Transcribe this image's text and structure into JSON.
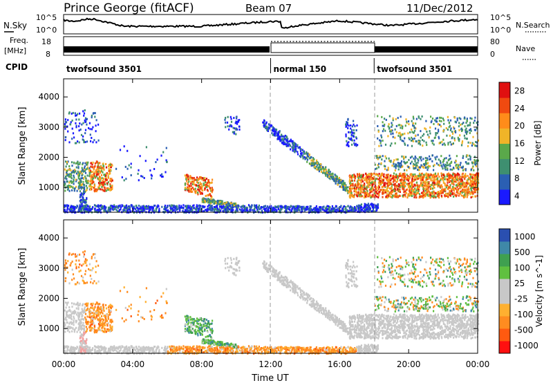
{
  "header": {
    "station": "Prince George (fitACF)",
    "beam": "Beam 07",
    "date": "11/Dec/2012"
  },
  "noise_panel": {
    "left_label": "N.Sky",
    "right_label": "N.Search",
    "left_ticks": [
      "10^5",
      "10^0"
    ],
    "right_ticks": [
      "10^5",
      "10^0"
    ]
  },
  "freq_panel": {
    "left_label_1": "Freq.",
    "left_label_2": "[MHz]",
    "left_ticks": [
      "18",
      "8"
    ],
    "right_label": "Nave",
    "right_ticks": [
      "80",
      "0"
    ]
  },
  "cpid": {
    "label": "CPID",
    "segments": [
      {
        "name": "twofsound 3501",
        "start": 0,
        "end": 12
      },
      {
        "name": "normal 150",
        "start": 12,
        "end": 18
      },
      {
        "name": "twofsound 3501",
        "start": 18,
        "end": 24
      }
    ]
  },
  "colors": {
    "power": [
      "#1a1aff",
      "#2b5fb3",
      "#3e8f70",
      "#5aa84a",
      "#f0b428",
      "#ff8c1a",
      "#f04a10",
      "#e01010"
    ],
    "velocity": [
      "#ff1010",
      "#ff5a10",
      "#ff8c20",
      "#ffb030",
      "#c8c8c8",
      "#c8c8c8",
      "#60c040",
      "#3fa050",
      "#3f88a8",
      "#2a4fb0"
    ],
    "ground": "#c8c8c8"
  },
  "chart_data": [
    {
      "type": "heatmap",
      "title": "",
      "xlabel": "Time UT",
      "ylabel": "Slant Range [km]",
      "xlim": [
        0,
        24
      ],
      "ylim": [
        180,
        4600
      ],
      "x_ticks": [
        "00:00",
        "04:00",
        "08:00",
        "12:00",
        "16:00",
        "20:00",
        "00:00"
      ],
      "y_ticks": [
        "1000",
        "2000",
        "3000",
        "4000"
      ],
      "colorbar_label": "Power [dB]",
      "colorbar_ticks": [
        "28",
        "24",
        "20",
        "16",
        "12",
        "8",
        "4"
      ],
      "colorbar_range": [
        0,
        30
      ]
    },
    {
      "type": "heatmap",
      "title": "",
      "xlabel": "Time UT",
      "ylabel": "Slant Range [km]",
      "xlim": [
        0,
        24
      ],
      "ylim": [
        180,
        4600
      ],
      "x_ticks": [
        "00:00",
        "04:00",
        "08:00",
        "12:00",
        "16:00",
        "20:00",
        "00:00"
      ],
      "y_ticks": [
        "1000",
        "2000",
        "3000",
        "4000"
      ],
      "colorbar_label": "Velocity [m s^-1]",
      "colorbar_ticks": [
        "1000",
        "500",
        "100",
        "25",
        "-25",
        "-100",
        "-500",
        "-1000"
      ],
      "colorbar_range": [
        -1000,
        1000
      ]
    }
  ]
}
